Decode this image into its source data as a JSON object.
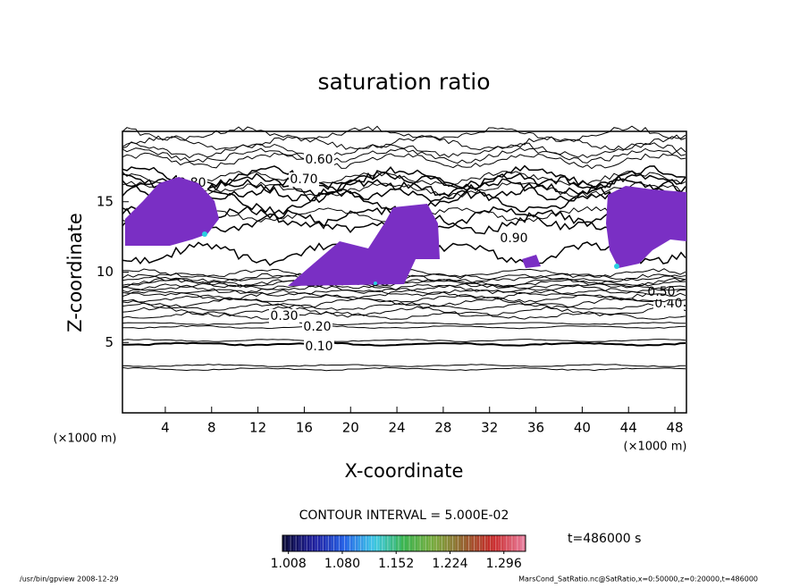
{
  "chart_data": {
    "type": "contour",
    "title": "saturation ratio",
    "x_label": "X-coordinate",
    "y_label": "Z-coordinate",
    "x_unit": "(×1000 m)",
    "xlim": [
      0.3,
      49.0
    ],
    "ylim": [
      0,
      20
    ],
    "xticks": [
      4,
      8,
      12,
      16,
      20,
      24,
      28,
      32,
      36,
      40,
      44,
      48
    ],
    "yticks": [
      5,
      10,
      15
    ],
    "contour_interval": "CONTOUR INTERVAL = 5.000E-02",
    "contours": [
      {
        "level": 0.05,
        "label": null
      },
      {
        "level": 0.1,
        "label": "0.10"
      },
      {
        "level": 0.2,
        "label": "0.20"
      },
      {
        "level": 0.3,
        "label": "0.30"
      },
      {
        "level": 0.4,
        "label": "0.40"
      },
      {
        "level": 0.5,
        "label": "0.50"
      },
      {
        "level": 0.6,
        "label": "0.60"
      },
      {
        "level": 0.7,
        "label": "0.70"
      },
      {
        "level": 0.8,
        "label": "0.80"
      },
      {
        "level": 0.9,
        "label": "0.90"
      }
    ],
    "colorbar": {
      "clim": [
        1.0,
        1.325
      ],
      "ticks": [
        1.008,
        {
          "value": 1.08,
          "label": "1.080"
        },
        1.152,
        1.224,
        1.296
      ]
    },
    "time_label": "t=486000 s",
    "footer_left": "/usr/bin/gpview   2008-12-29",
    "footer_right": "MarsCond_SatRatio.nc@SatRatio,x=0:50000,z=0:20000,t=486000"
  }
}
